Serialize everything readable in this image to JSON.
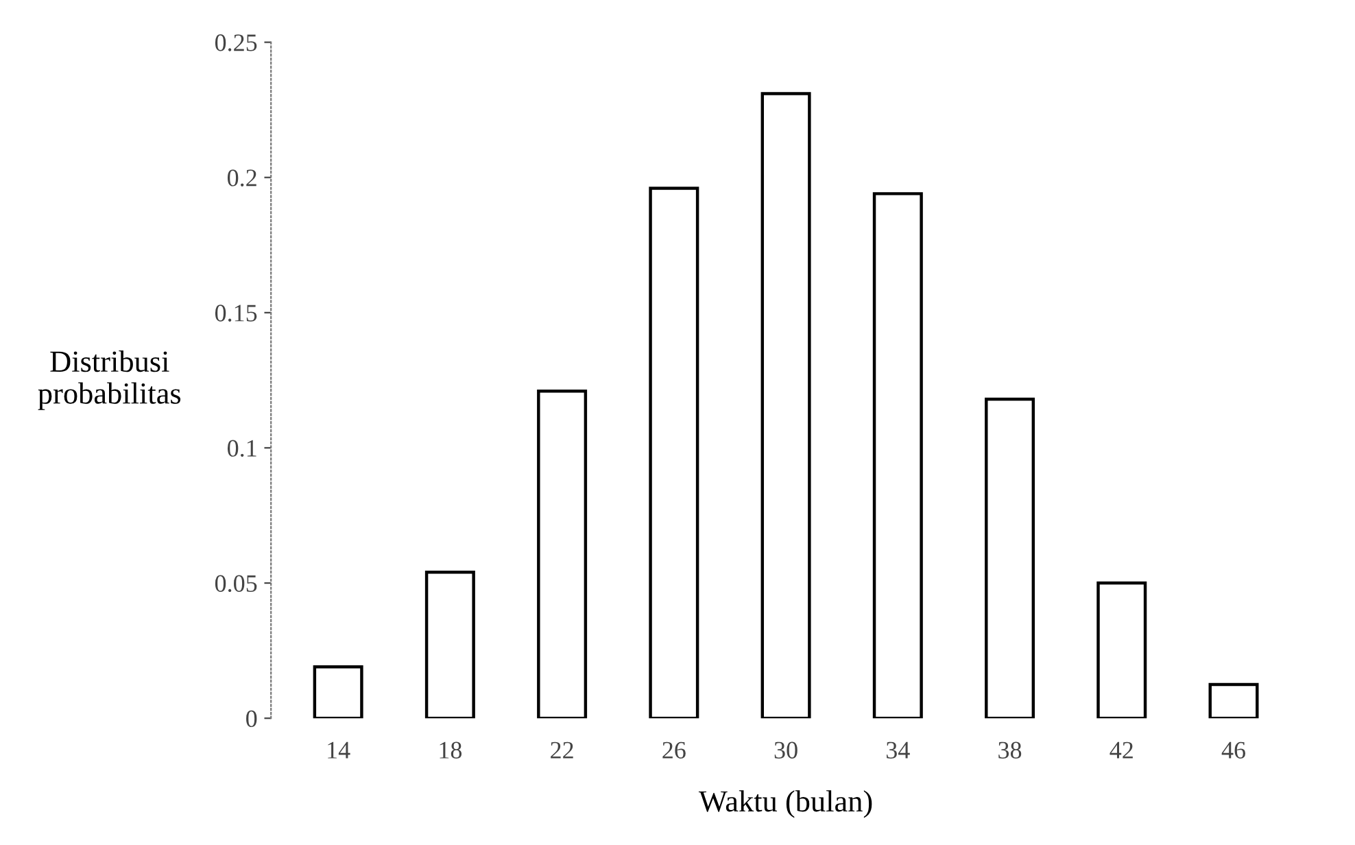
{
  "chart_data": {
    "type": "bar",
    "xlabel": "Waktu (bulan)",
    "ylabel": "Distribusi\nprobabilitas",
    "categories": [
      "14",
      "18",
      "22",
      "26",
      "30",
      "34",
      "38",
      "42",
      "46"
    ],
    "values": [
      0.019,
      0.054,
      0.121,
      0.196,
      0.231,
      0.194,
      0.118,
      0.05,
      0.0125
    ],
    "color": "#ffffff",
    "ylim": [
      0,
      0.25
    ],
    "yticks": [
      0,
      0.05,
      0.1,
      0.15,
      0.2,
      0.25
    ],
    "grid": false
  }
}
